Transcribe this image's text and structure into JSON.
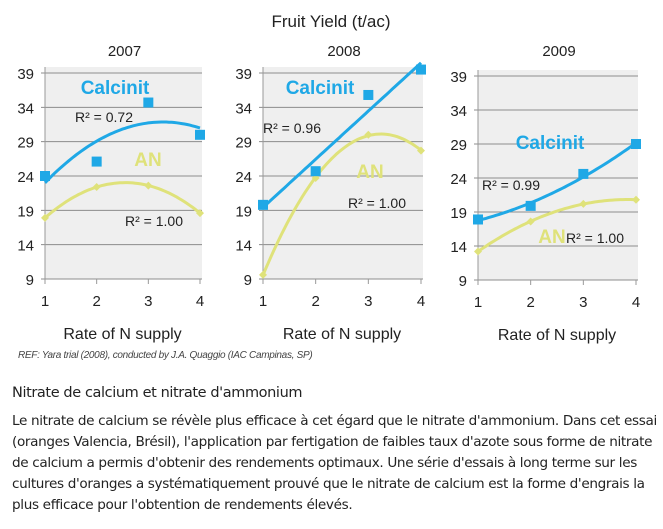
{
  "chart_data": {
    "type": "line",
    "title": "Fruit Yield (t/ac)",
    "colors": {
      "Calcinit": "#1fa8e6",
      "AN": "#dfe27a",
      "plot_bg": "#efefef",
      "grid": "#8c8c8c"
    },
    "panels": [
      {
        "title": "2007",
        "xlabel": "Rate of N supply",
        "x": [
          1,
          2,
          3,
          4
        ],
        "ylim": [
          9,
          39
        ],
        "yticks": [
          9,
          14,
          19,
          24,
          29,
          34,
          39
        ],
        "grid": true,
        "series": [
          {
            "name": "Calcinit",
            "values": [
              24,
              26.1,
              34.7,
              30
            ],
            "marker": "square",
            "trendline": "polynomial",
            "r2_label": "R² = 0.72"
          },
          {
            "name": "AN",
            "values": [
              17.9,
              22.4,
              22.6,
              18.6
            ],
            "marker": "diamond",
            "trendline": "polynomial",
            "r2_label": "R² = 1.00"
          }
        ]
      },
      {
        "title": "2008",
        "xlabel": "Rate of N supply",
        "x": [
          1,
          2,
          3,
          4
        ],
        "ylim": [
          9,
          39
        ],
        "yticks": [
          9,
          14,
          19,
          24,
          29,
          34,
          39
        ],
        "grid": true,
        "series": [
          {
            "name": "Calcinit",
            "values": [
              19.8,
              24.7,
              35.8,
              39.5
            ],
            "marker": "square",
            "trendline": "linear",
            "r2_label": "R² = 0.96"
          },
          {
            "name": "AN",
            "values": [
              9.6,
              23.7,
              30,
              27.7
            ],
            "marker": "diamond",
            "trendline": "polynomial",
            "r2_label": "R² = 1.00"
          }
        ]
      },
      {
        "title": "2009",
        "xlabel": "Rate of N supply",
        "x": [
          1,
          2,
          3,
          4
        ],
        "ylim": [
          9,
          39
        ],
        "yticks": [
          9,
          14,
          19,
          24,
          29,
          34,
          39
        ],
        "grid": true,
        "series": [
          {
            "name": "Calcinit",
            "values": [
              17.9,
              19.9,
              24.6,
              29
            ],
            "marker": "square",
            "trendline": "polynomial",
            "r2_label": "R² = 0.99"
          },
          {
            "name": "AN",
            "values": [
              13.2,
              17.6,
              20.2,
              20.8
            ],
            "marker": "diamond",
            "trendline": "polynomial",
            "r2_label": "R² = 1.00"
          }
        ]
      }
    ]
  },
  "reference": "REF: Yara trial (2008), conducted by J.A. Quaggio (IAC Campinas, SP)",
  "article": {
    "heading": "Nitrate de calcium et nitrate d'ammonium",
    "paragraph": "Le nitrate de calcium se révèle plus efficace à cet égard que le nitrate d'ammonium. Dans cet essai (oranges Valencia, Brésil), l'application par fertigation de faibles taux d'azote sous forme de nitrate de calcium a permis d'obtenir des rendements optimaux. Une série d'essais à long terme sur les cultures d'oranges a systématiquement prouvé que le nitrate de calcium est la forme d'engrais la plus efficace pour l'obtention de rendements élevés."
  }
}
